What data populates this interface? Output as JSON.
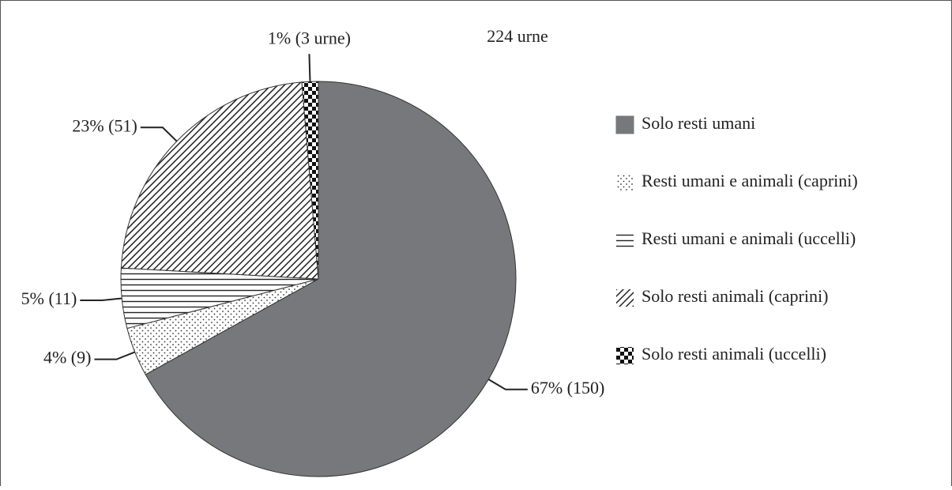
{
  "chart_data": {
    "type": "pie",
    "title": "224 urne",
    "categories": [
      "Solo resti umani",
      "Resti umani e animali (caprini)",
      "Resti umani e animali (uccelli)",
      "Solo resti animali (caprini)",
      "Solo resti animali (uccelli)"
    ],
    "values": [
      150,
      9,
      11,
      51,
      3
    ],
    "value_labels": [
      "67% (150)",
      "4% (9)",
      "5% (11)",
      "23% (51)",
      "1% (3 urne)"
    ],
    "colors": [
      "#77787b",
      "#ffffff",
      "#ffffff",
      "#ffffff",
      "#ffffff"
    ],
    "patterns": [
      "solid",
      "dots",
      "hlines",
      "diagonal",
      "checker"
    ],
    "legend": "right"
  }
}
